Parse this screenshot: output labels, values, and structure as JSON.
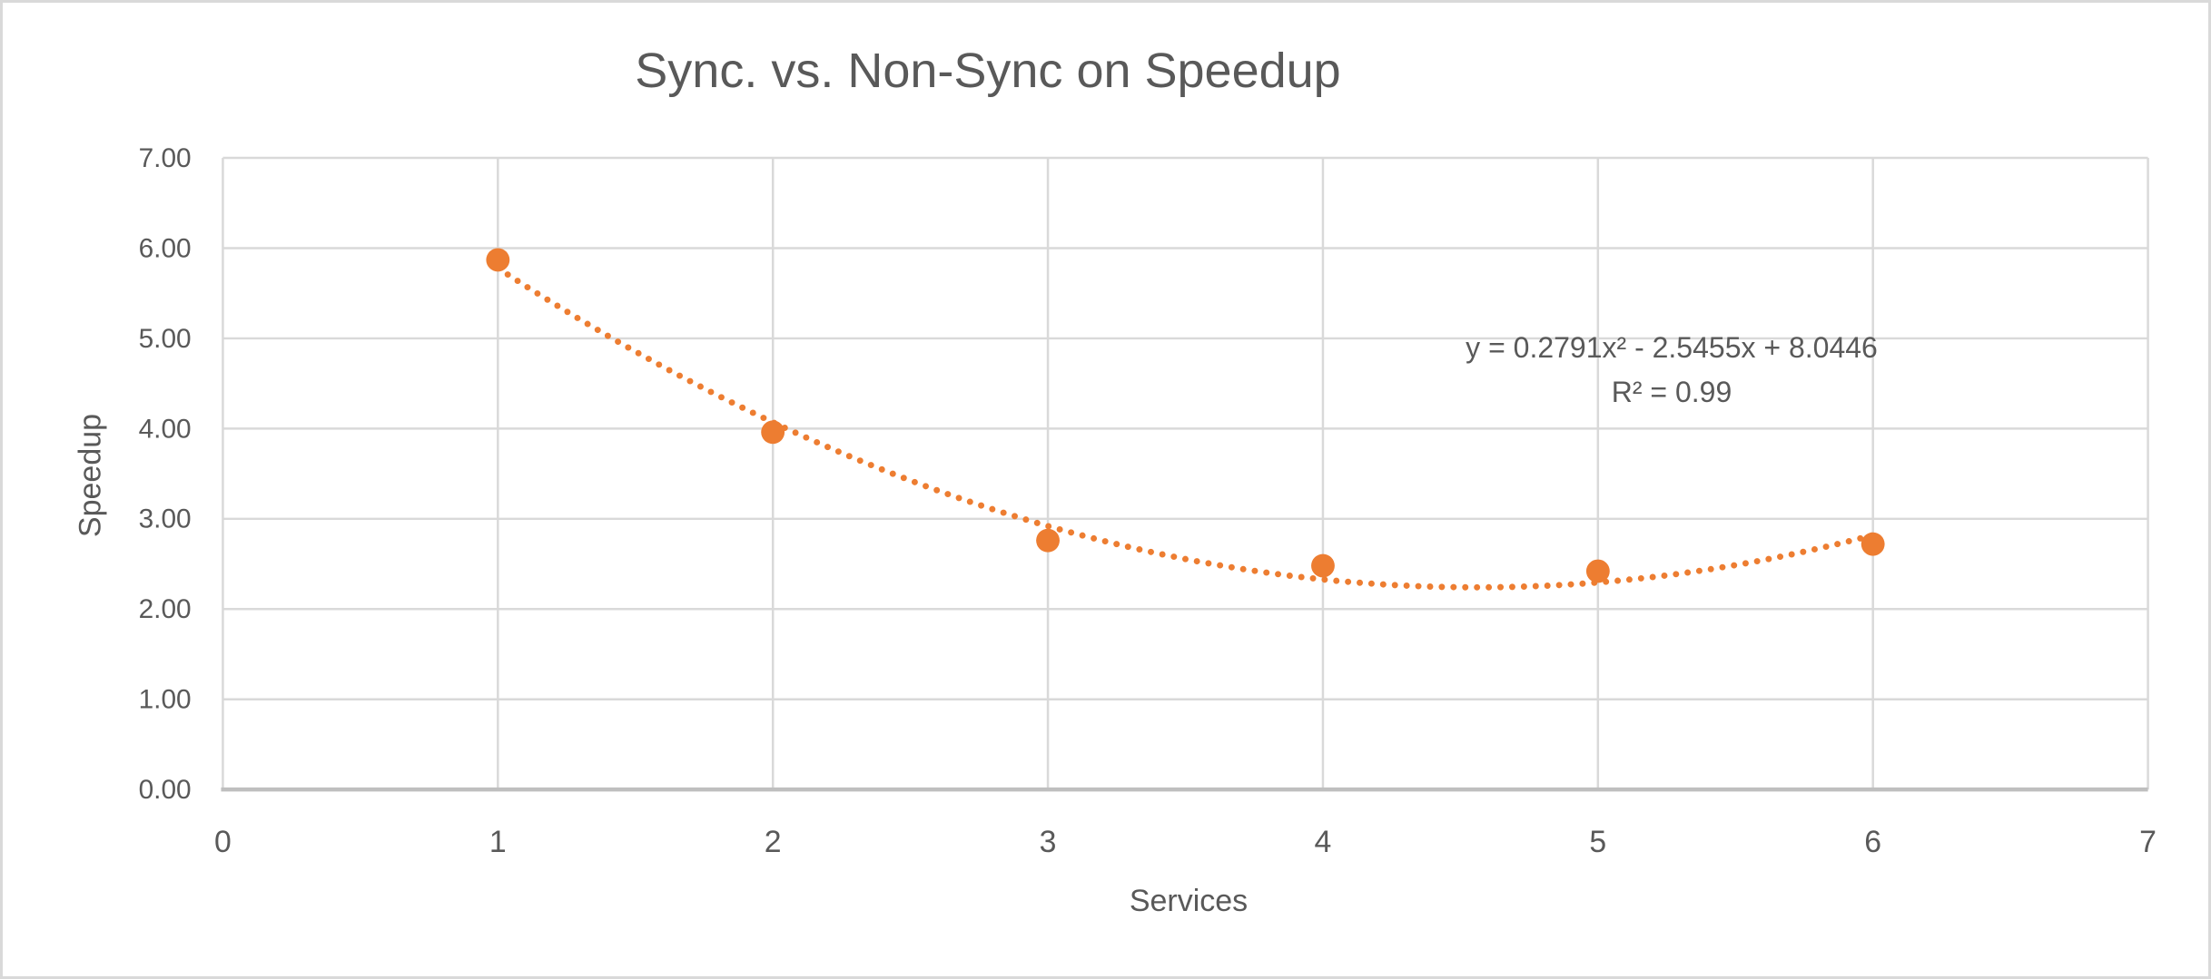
{
  "colors": {
    "text": "#595959",
    "gridline": "#d9d9d9",
    "axis_line": "#bfbfbf",
    "series": "#ED7D31",
    "chart_border": "#d9d9d9",
    "background": "#ffffff"
  },
  "chart_data": {
    "type": "scatter",
    "title": "Sync. vs. Non-Sync on Speedup",
    "xlabel": "Services",
    "ylabel": "Speedup",
    "x": [
      1,
      2,
      3,
      4,
      5,
      6
    ],
    "y": [
      5.87,
      3.96,
      2.76,
      2.48,
      2.42,
      2.72
    ],
    "xlim": [
      0,
      7
    ],
    "ylim": [
      0,
      7
    ],
    "x_ticks": [
      "0",
      "1",
      "2",
      "3",
      "4",
      "5",
      "6",
      "7"
    ],
    "y_ticks": [
      "0.00",
      "1.00",
      "2.00",
      "3.00",
      "4.00",
      "5.00",
      "6.00",
      "7.00"
    ],
    "grid": true,
    "legend": false,
    "marker": {
      "shape": "circle",
      "color": "#ED7D31",
      "radius_px": 13
    },
    "trendline": {
      "type": "polynomial",
      "order": 2,
      "a": 0.2791,
      "b": -2.5455,
      "c": 8.0446,
      "x_start": 1,
      "x_end": 6,
      "style": "dotted",
      "color": "#ED7D31",
      "equation": "y = 0.2791x² - 2.5455x + 8.0446",
      "r_squared": "R² = 0.99"
    }
  }
}
